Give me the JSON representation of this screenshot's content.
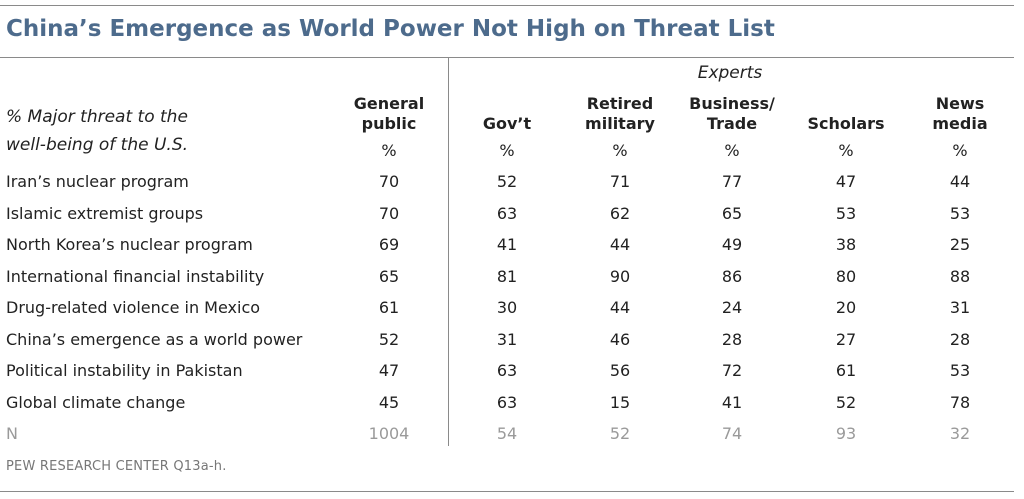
{
  "title": "China’s Emergence as World Power Not High on Threat List",
  "stub_line1": "% Major threat to the",
  "stub_line2": "well-being of the U.S.",
  "group_label": "Experts",
  "chart_data": {
    "type": "table",
    "columns": [
      {
        "line1": "General",
        "line2": "public",
        "unit": "%"
      },
      {
        "line1": "Gov’t",
        "line2": "",
        "unit": "%"
      },
      {
        "line1": "Retired",
        "line2": "military",
        "unit": "%"
      },
      {
        "line1": "Business/",
        "line2": "Trade",
        "unit": "%"
      },
      {
        "line1": "Scholars",
        "line2": "",
        "unit": "%"
      },
      {
        "line1": "News",
        "line2": "media",
        "unit": "%"
      }
    ],
    "rows": [
      {
        "label": "Iran’s nuclear program",
        "values": [
          70,
          52,
          71,
          77,
          47,
          44
        ]
      },
      {
        "label": "Islamic extremist groups",
        "values": [
          70,
          63,
          62,
          65,
          53,
          53
        ]
      },
      {
        "label": "North Korea’s nuclear program",
        "values": [
          69,
          41,
          44,
          49,
          38,
          25
        ]
      },
      {
        "label": "International financial instability",
        "values": [
          65,
          81,
          90,
          86,
          80,
          88
        ]
      },
      {
        "label": "Drug-related violence in Mexico",
        "values": [
          61,
          30,
          44,
          24,
          20,
          31
        ]
      },
      {
        "label": "China’s emergence as a world power",
        "values": [
          52,
          31,
          46,
          28,
          27,
          28
        ]
      },
      {
        "label": "Political instability in Pakistan",
        "values": [
          47,
          63,
          56,
          72,
          61,
          53
        ]
      },
      {
        "label": "Global climate change",
        "values": [
          45,
          63,
          15,
          41,
          52,
          78
        ]
      }
    ],
    "n_row": {
      "label": "N",
      "values": [
        1004,
        54,
        52,
        74,
        93,
        32
      ]
    }
  },
  "source": "PEW RESEARCH CENTER Q13a-h."
}
